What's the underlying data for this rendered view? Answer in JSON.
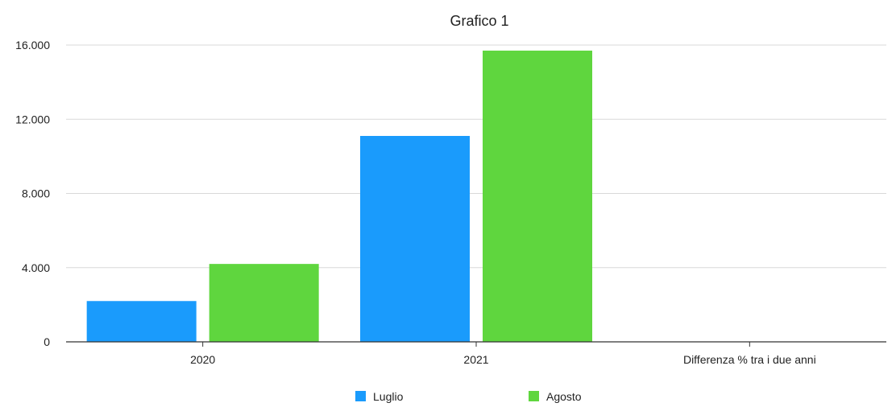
{
  "chart_data": {
    "type": "bar",
    "title": "Grafico 1",
    "categories": [
      "2020",
      "2021",
      "Differenza % tra i due anni"
    ],
    "series": [
      {
        "name": "Luglio",
        "color": "#1a9bfc",
        "values": [
          2200,
          11100,
          null
        ]
      },
      {
        "name": "Agosto",
        "color": "#5fd63e",
        "values": [
          4200,
          15700,
          null
        ]
      }
    ],
    "yticks": [
      "0",
      "4.000",
      "8.000",
      "12.000",
      "16.000"
    ],
    "ytick_values": [
      0,
      4000,
      8000,
      12000,
      16000
    ],
    "ylim": [
      0,
      16000
    ],
    "grid": true,
    "legend": "bottom-center"
  }
}
